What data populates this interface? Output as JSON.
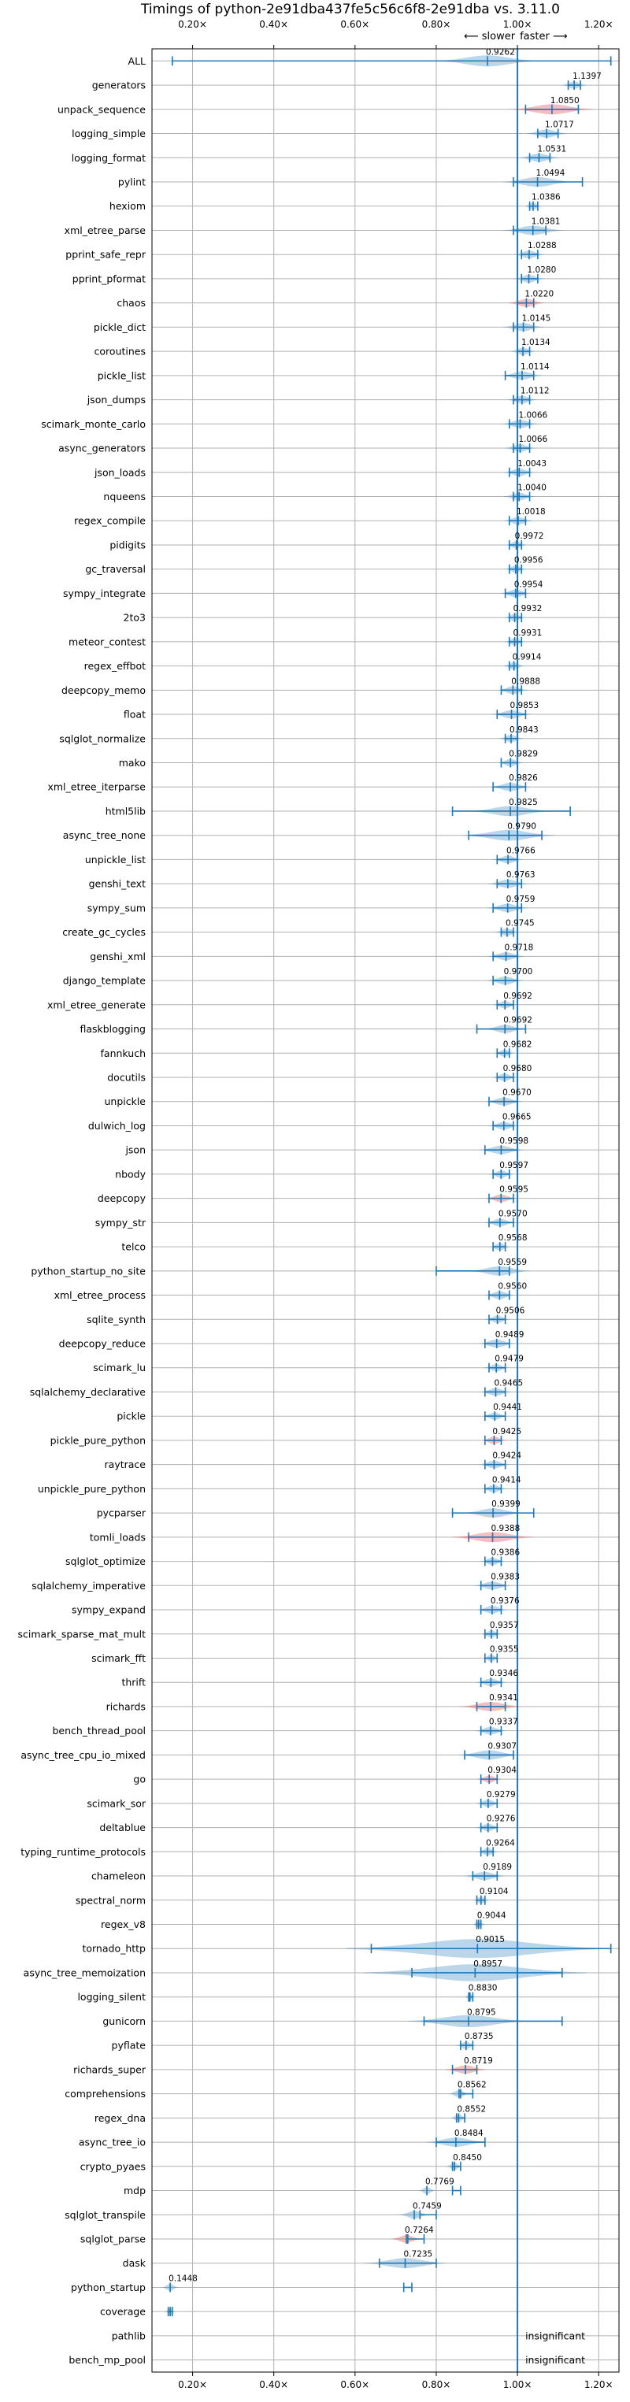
{
  "chart_data": {
    "type": "violin",
    "title": "Timings of python-2e91dba437fe5c56c6f8-2e91dba vs. 3.11.0",
    "direction_labels": {
      "slower": "⟵ slower",
      "faster": "faster ⟶"
    },
    "xlim": [
      0.1,
      1.25
    ],
    "xticks": [
      0.2,
      0.4,
      0.6,
      0.8,
      1.0,
      1.2
    ],
    "xtick_labels": [
      "0.20×",
      "0.40×",
      "0.60×",
      "0.80×",
      "1.00×",
      "1.20×"
    ],
    "reference_line": 1.0,
    "grid": true,
    "insignificant_label": "insignificant",
    "benchmarks": [
      {
        "name": "ALL",
        "value": 0.9262,
        "label": "0.9262",
        "lo": 0.15,
        "hi": 1.23,
        "spread": 0.05,
        "sig": false
      },
      {
        "name": "generators",
        "value": 1.1397,
        "label": "1.1397",
        "lo": 1.125,
        "hi": 1.155,
        "spread": 0.012,
        "sig": false
      },
      {
        "name": "unpack_sequence",
        "value": 1.085,
        "label": "1.0850",
        "lo": 1.02,
        "hi": 1.15,
        "spread": 0.04,
        "sig": true
      },
      {
        "name": "logging_simple",
        "value": 1.0717,
        "label": "1.0717",
        "lo": 1.05,
        "hi": 1.1,
        "spread": 0.02,
        "sig": false
      },
      {
        "name": "logging_format",
        "value": 1.0531,
        "label": "1.0531",
        "lo": 1.03,
        "hi": 1.08,
        "spread": 0.02,
        "sig": false
      },
      {
        "name": "pylint",
        "value": 1.0494,
        "label": "1.0494",
        "lo": 0.99,
        "hi": 1.16,
        "spread": 0.035,
        "sig": false
      },
      {
        "name": "hexiom",
        "value": 1.0386,
        "label": "1.0386",
        "lo": 1.03,
        "hi": 1.05,
        "spread": 0.008,
        "sig": false
      },
      {
        "name": "xml_etree_parse",
        "value": 1.0381,
        "label": "1.0381",
        "lo": 0.99,
        "hi": 1.07,
        "spread": 0.03,
        "sig": false
      },
      {
        "name": "pprint_safe_repr",
        "value": 1.0288,
        "label": "1.0288",
        "lo": 1.01,
        "hi": 1.05,
        "spread": 0.015,
        "sig": false
      },
      {
        "name": "pprint_pformat",
        "value": 1.028,
        "label": "1.0280",
        "lo": 1.01,
        "hi": 1.05,
        "spread": 0.015,
        "sig": false
      },
      {
        "name": "chaos",
        "value": 1.022,
        "label": "1.0220",
        "lo": 1.0,
        "hi": 1.04,
        "spread": 0.018,
        "sig": true
      },
      {
        "name": "pickle_dict",
        "value": 1.0145,
        "label": "1.0145",
        "lo": 0.99,
        "hi": 1.04,
        "spread": 0.02,
        "sig": false
      },
      {
        "name": "coroutines",
        "value": 1.0134,
        "label": "1.0134",
        "lo": 1.0,
        "hi": 1.03,
        "spread": 0.012,
        "sig": false
      },
      {
        "name": "pickle_list",
        "value": 1.0114,
        "label": "1.0114",
        "lo": 0.97,
        "hi": 1.04,
        "spread": 0.02,
        "sig": false
      },
      {
        "name": "json_dumps",
        "value": 1.0112,
        "label": "1.0112",
        "lo": 0.99,
        "hi": 1.03,
        "spread": 0.015,
        "sig": false
      },
      {
        "name": "scimark_monte_carlo",
        "value": 1.0066,
        "label": "1.0066",
        "lo": 0.98,
        "hi": 1.03,
        "spread": 0.018,
        "sig": false
      },
      {
        "name": "async_generators",
        "value": 1.0066,
        "label": "1.0066",
        "lo": 0.99,
        "hi": 1.03,
        "spread": 0.015,
        "sig": false
      },
      {
        "name": "json_loads",
        "value": 1.0043,
        "label": "1.0043",
        "lo": 0.98,
        "hi": 1.03,
        "spread": 0.015,
        "sig": false
      },
      {
        "name": "nqueens",
        "value": 1.004,
        "label": "1.0040",
        "lo": 0.99,
        "hi": 1.03,
        "spread": 0.015,
        "sig": false
      },
      {
        "name": "regex_compile",
        "value": 1.0018,
        "label": "1.0018",
        "lo": 0.98,
        "hi": 1.02,
        "spread": 0.014,
        "sig": false
      },
      {
        "name": "pidigits",
        "value": 0.9972,
        "label": "0.9972",
        "lo": 0.98,
        "hi": 1.01,
        "spread": 0.01,
        "sig": false
      },
      {
        "name": "gc_traversal",
        "value": 0.9956,
        "label": "0.9956",
        "lo": 0.98,
        "hi": 1.01,
        "spread": 0.01,
        "sig": false
      },
      {
        "name": "sympy_integrate",
        "value": 0.9954,
        "label": "0.9954",
        "lo": 0.97,
        "hi": 1.02,
        "spread": 0.015,
        "sig": false
      },
      {
        "name": "2to3",
        "value": 0.9932,
        "label": "0.9932",
        "lo": 0.98,
        "hi": 1.01,
        "spread": 0.01,
        "sig": false
      },
      {
        "name": "meteor_contest",
        "value": 0.9931,
        "label": "0.9931",
        "lo": 0.98,
        "hi": 1.01,
        "spread": 0.01,
        "sig": false
      },
      {
        "name": "regex_effbot",
        "value": 0.9914,
        "label": "0.9914",
        "lo": 0.98,
        "hi": 1.0,
        "spread": 0.01,
        "sig": false
      },
      {
        "name": "deepcopy_memo",
        "value": 0.9888,
        "label": "0.9888",
        "lo": 0.96,
        "hi": 1.01,
        "spread": 0.015,
        "sig": false
      },
      {
        "name": "float",
        "value": 0.9853,
        "label": "0.9853",
        "lo": 0.95,
        "hi": 1.02,
        "spread": 0.02,
        "sig": false
      },
      {
        "name": "sqlglot_normalize",
        "value": 0.9843,
        "label": "0.9843",
        "lo": 0.97,
        "hi": 1.0,
        "spread": 0.012,
        "sig": false
      },
      {
        "name": "mako",
        "value": 0.9829,
        "label": "0.9829",
        "lo": 0.96,
        "hi": 1.0,
        "spread": 0.012,
        "sig": false
      },
      {
        "name": "xml_etree_iterparse",
        "value": 0.9826,
        "label": "0.9826",
        "lo": 0.94,
        "hi": 1.02,
        "spread": 0.02,
        "sig": false
      },
      {
        "name": "html5lib",
        "value": 0.9825,
        "label": "0.9825",
        "lo": 0.84,
        "hi": 1.13,
        "spread": 0.04,
        "sig": false
      },
      {
        "name": "async_tree_none",
        "value": 0.979,
        "label": "0.9790",
        "lo": 0.88,
        "hi": 1.06,
        "spread": 0.045,
        "sig": false
      },
      {
        "name": "unpickle_list",
        "value": 0.9766,
        "label": "0.9766",
        "lo": 0.95,
        "hi": 1.0,
        "spread": 0.015,
        "sig": false
      },
      {
        "name": "genshi_text",
        "value": 0.9763,
        "label": "0.9763",
        "lo": 0.95,
        "hi": 1.01,
        "spread": 0.02,
        "sig": false
      },
      {
        "name": "sympy_sum",
        "value": 0.9759,
        "label": "0.9759",
        "lo": 0.94,
        "hi": 1.01,
        "spread": 0.02,
        "sig": false
      },
      {
        "name": "create_gc_cycles",
        "value": 0.9745,
        "label": "0.9745",
        "lo": 0.96,
        "hi": 0.99,
        "spread": 0.012,
        "sig": false
      },
      {
        "name": "genshi_xml",
        "value": 0.9718,
        "label": "0.9718",
        "lo": 0.94,
        "hi": 1.0,
        "spread": 0.018,
        "sig": false
      },
      {
        "name": "django_template",
        "value": 0.97,
        "label": "0.9700",
        "lo": 0.94,
        "hi": 1.0,
        "spread": 0.018,
        "sig": false
      },
      {
        "name": "xml_etree_generate",
        "value": 0.9692,
        "label": "0.9692",
        "lo": 0.95,
        "hi": 0.99,
        "spread": 0.012,
        "sig": false
      },
      {
        "name": "flaskblogging",
        "value": 0.9692,
        "label": "0.9692",
        "lo": 0.9,
        "hi": 1.02,
        "spread": 0.02,
        "sig": false
      },
      {
        "name": "fannkuch",
        "value": 0.9682,
        "label": "0.9682",
        "lo": 0.95,
        "hi": 0.98,
        "spread": 0.01,
        "sig": false
      },
      {
        "name": "docutils",
        "value": 0.968,
        "label": "0.9680",
        "lo": 0.95,
        "hi": 0.99,
        "spread": 0.012,
        "sig": false
      },
      {
        "name": "unpickle",
        "value": 0.967,
        "label": "0.9670",
        "lo": 0.93,
        "hi": 1.0,
        "spread": 0.018,
        "sig": false
      },
      {
        "name": "dulwich_log",
        "value": 0.9665,
        "label": "0.9665",
        "lo": 0.94,
        "hi": 0.99,
        "spread": 0.015,
        "sig": false
      },
      {
        "name": "json",
        "value": 0.9598,
        "label": "0.9598",
        "lo": 0.92,
        "hi": 1.0,
        "spread": 0.022,
        "sig": false
      },
      {
        "name": "nbody",
        "value": 0.9597,
        "label": "0.9597",
        "lo": 0.94,
        "hi": 0.98,
        "spread": 0.012,
        "sig": false
      },
      {
        "name": "deepcopy",
        "value": 0.9595,
        "label": "0.9595",
        "lo": 0.93,
        "hi": 0.99,
        "spread": 0.015,
        "sig": true
      },
      {
        "name": "sympy_str",
        "value": 0.957,
        "label": "0.9570",
        "lo": 0.93,
        "hi": 0.99,
        "spread": 0.015,
        "sig": false
      },
      {
        "name": "telco",
        "value": 0.9568,
        "label": "0.9568",
        "lo": 0.94,
        "hi": 0.97,
        "spread": 0.01,
        "sig": false
      },
      {
        "name": "python_startup_no_site",
        "value": 0.9559,
        "label": "0.9559",
        "lo": 0.8,
        "hi": 0.98,
        "spread": 0.03,
        "sig": false
      },
      {
        "name": "xml_etree_process",
        "value": 0.956,
        "label": "0.9560",
        "lo": 0.93,
        "hi": 0.98,
        "spread": 0.015,
        "sig": false
      },
      {
        "name": "sqlite_synth",
        "value": 0.9506,
        "label": "0.9506",
        "lo": 0.93,
        "hi": 0.97,
        "spread": 0.012,
        "sig": false
      },
      {
        "name": "deepcopy_reduce",
        "value": 0.9489,
        "label": "0.9489",
        "lo": 0.92,
        "hi": 0.98,
        "spread": 0.018,
        "sig": false
      },
      {
        "name": "scimark_lu",
        "value": 0.9479,
        "label": "0.9479",
        "lo": 0.93,
        "hi": 0.97,
        "spread": 0.012,
        "sig": false
      },
      {
        "name": "sqlalchemy_declarative",
        "value": 0.9465,
        "label": "0.9465",
        "lo": 0.92,
        "hi": 0.97,
        "spread": 0.015,
        "sig": false
      },
      {
        "name": "pickle",
        "value": 0.9441,
        "label": "0.9441",
        "lo": 0.92,
        "hi": 0.97,
        "spread": 0.012,
        "sig": false
      },
      {
        "name": "pickle_pure_python",
        "value": 0.9425,
        "label": "0.9425",
        "lo": 0.92,
        "hi": 0.96,
        "spread": 0.012,
        "sig": true
      },
      {
        "name": "raytrace",
        "value": 0.9424,
        "label": "0.9424",
        "lo": 0.92,
        "hi": 0.97,
        "spread": 0.015,
        "sig": false
      },
      {
        "name": "unpickle_pure_python",
        "value": 0.9414,
        "label": "0.9414",
        "lo": 0.92,
        "hi": 0.96,
        "spread": 0.012,
        "sig": false
      },
      {
        "name": "pycparser",
        "value": 0.9399,
        "label": "0.9399",
        "lo": 0.84,
        "hi": 1.04,
        "spread": 0.03,
        "sig": false
      },
      {
        "name": "tomli_loads",
        "value": 0.9388,
        "label": "0.9388",
        "lo": 0.88,
        "hi": 1.0,
        "spread": 0.04,
        "sig": true
      },
      {
        "name": "sqlglot_optimize",
        "value": 0.9386,
        "label": "0.9386",
        "lo": 0.92,
        "hi": 0.96,
        "spread": 0.012,
        "sig": false
      },
      {
        "name": "sqlalchemy_imperative",
        "value": 0.9383,
        "label": "0.9383",
        "lo": 0.91,
        "hi": 0.97,
        "spread": 0.018,
        "sig": false
      },
      {
        "name": "sympy_expand",
        "value": 0.9376,
        "label": "0.9376",
        "lo": 0.91,
        "hi": 0.96,
        "spread": 0.015,
        "sig": false
      },
      {
        "name": "scimark_sparse_mat_mult",
        "value": 0.9357,
        "label": "0.9357",
        "lo": 0.92,
        "hi": 0.95,
        "spread": 0.01,
        "sig": false
      },
      {
        "name": "scimark_fft",
        "value": 0.9355,
        "label": "0.9355",
        "lo": 0.92,
        "hi": 0.95,
        "spread": 0.008,
        "sig": false
      },
      {
        "name": "thrift",
        "value": 0.9346,
        "label": "0.9346",
        "lo": 0.91,
        "hi": 0.96,
        "spread": 0.015,
        "sig": false
      },
      {
        "name": "richards",
        "value": 0.9341,
        "label": "0.9341",
        "lo": 0.9,
        "hi": 0.97,
        "spread": 0.03,
        "sig": true
      },
      {
        "name": "bench_thread_pool",
        "value": 0.9337,
        "label": "0.9337",
        "lo": 0.91,
        "hi": 0.96,
        "spread": 0.015,
        "sig": false
      },
      {
        "name": "async_tree_cpu_io_mixed",
        "value": 0.9307,
        "label": "0.9307",
        "lo": 0.87,
        "hi": 0.99,
        "spread": 0.03,
        "sig": false
      },
      {
        "name": "go",
        "value": 0.9304,
        "label": "0.9304",
        "lo": 0.91,
        "hi": 0.95,
        "spread": 0.012,
        "sig": true
      },
      {
        "name": "scimark_sor",
        "value": 0.9279,
        "label": "0.9279",
        "lo": 0.91,
        "hi": 0.95,
        "spread": 0.012,
        "sig": false
      },
      {
        "name": "deltablue",
        "value": 0.9276,
        "label": "0.9276",
        "lo": 0.91,
        "hi": 0.95,
        "spread": 0.012,
        "sig": false
      },
      {
        "name": "typing_runtime_protocols",
        "value": 0.9264,
        "label": "0.9264",
        "lo": 0.91,
        "hi": 0.94,
        "spread": 0.01,
        "sig": false
      },
      {
        "name": "chameleon",
        "value": 0.9189,
        "label": "0.9189",
        "lo": 0.89,
        "hi": 0.95,
        "spread": 0.02,
        "sig": false
      },
      {
        "name": "spectral_norm",
        "value": 0.9104,
        "label": "0.9104",
        "lo": 0.9,
        "hi": 0.92,
        "spread": 0.008,
        "sig": false
      },
      {
        "name": "regex_v8",
        "value": 0.9044,
        "label": "0.9044",
        "lo": 0.9,
        "hi": 0.91,
        "spread": 0.006,
        "sig": false
      },
      {
        "name": "tornado_http",
        "value": 0.9015,
        "label": "0.9015",
        "lo": 0.64,
        "hi": 1.23,
        "spread": 0.13,
        "sig": false
      },
      {
        "name": "async_tree_memoization",
        "value": 0.8957,
        "label": "0.8957",
        "lo": 0.74,
        "hi": 1.11,
        "spread": 0.11,
        "sig": false
      },
      {
        "name": "logging_silent",
        "value": 0.883,
        "label": "0.8830",
        "lo": 0.88,
        "hi": 0.89,
        "spread": 0.005,
        "sig": false
      },
      {
        "name": "gunicorn",
        "value": 0.8795,
        "label": "0.8795",
        "lo": 0.77,
        "hi": 1.11,
        "spread": 0.06,
        "sig": false
      },
      {
        "name": "pyflate",
        "value": 0.8735,
        "label": "0.8735",
        "lo": 0.86,
        "hi": 0.89,
        "spread": 0.01,
        "sig": false
      },
      {
        "name": "richards_super",
        "value": 0.8719,
        "label": "0.8719",
        "lo": 0.84,
        "hi": 0.9,
        "spread": 0.02,
        "sig": true
      },
      {
        "name": "comprehensions",
        "value": 0.8562,
        "label": "0.8562",
        "lo": 0.86,
        "hi": 0.89,
        "spread": 0.01,
        "sig": false
      },
      {
        "name": "regex_dna",
        "value": 0.8552,
        "label": "0.8552",
        "lo": 0.85,
        "hi": 0.87,
        "spread": 0.008,
        "sig": false
      },
      {
        "name": "async_tree_io",
        "value": 0.8484,
        "label": "0.8484",
        "lo": 0.8,
        "hi": 0.92,
        "spread": 0.03,
        "sig": false
      },
      {
        "name": "crypto_pyaes",
        "value": 0.845,
        "label": "0.8450",
        "lo": 0.84,
        "hi": 0.86,
        "spread": 0.008,
        "sig": false
      },
      {
        "name": "mdp",
        "value": 0.7769,
        "label": "0.7769",
        "lo": 0.84,
        "hi": 0.86,
        "spread": 0.008,
        "sig": false
      },
      {
        "name": "sqlglot_transpile",
        "value": 0.7459,
        "label": "0.7459",
        "lo": 0.76,
        "hi": 0.8,
        "spread": 0.015,
        "sig": false
      },
      {
        "name": "sqlglot_parse",
        "value": 0.7264,
        "label": "0.7264",
        "lo": 0.73,
        "hi": 0.77,
        "spread": 0.015,
        "sig": true
      },
      {
        "name": "dask",
        "value": 0.7235,
        "label": "0.7235",
        "lo": 0.66,
        "hi": 0.8,
        "spread": 0.04,
        "sig": false
      },
      {
        "name": "python_startup",
        "value": 0.1448,
        "label": "0.1448",
        "lo": 0.72,
        "hi": 0.74,
        "spread": 0.008,
        "sig": false
      },
      {
        "name": "coverage",
        "value": 0.1448,
        "label": "",
        "lo": 0.14,
        "hi": 0.15,
        "spread": 0.005,
        "sig": false
      },
      {
        "name": "pathlib",
        "value": null,
        "label": "insignificant",
        "lo": null,
        "hi": null,
        "spread": 0,
        "sig": false
      },
      {
        "name": "bench_mp_pool",
        "value": null,
        "label": "insignificant",
        "lo": null,
        "hi": null,
        "spread": 0,
        "sig": false
      }
    ]
  }
}
